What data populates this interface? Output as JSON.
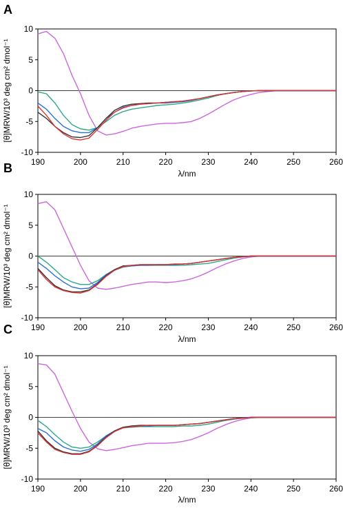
{
  "chart_data": [
    {
      "type": "line",
      "panel_label": "A",
      "xlabel": "λ/nm",
      "ylabel": "[θ]MRW/10³ deg cm² dmol⁻¹",
      "xlim": [
        190,
        260
      ],
      "ylim": [
        -10,
        10
      ],
      "x_ticks": [
        190,
        200,
        210,
        220,
        230,
        240,
        250,
        260
      ],
      "y_ticks": [
        10,
        5,
        0,
        -5,
        -10
      ],
      "x": [
        190,
        192,
        194,
        196,
        198,
        200,
        202,
        204,
        206,
        208,
        210,
        212,
        214,
        216,
        218,
        220,
        222,
        224,
        226,
        228,
        230,
        232,
        234,
        236,
        238,
        240,
        242,
        244,
        246,
        248,
        250,
        252,
        254,
        256,
        258,
        260
      ],
      "series": [
        {
          "color": "#cc66dd",
          "values": [
            9.2,
            9.6,
            8.5,
            6,
            2.5,
            -0.5,
            -4,
            -6.5,
            -7.2,
            -7,
            -6.6,
            -6.1,
            -5.8,
            -5.6,
            -5.4,
            -5.3,
            -5.3,
            -5.2,
            -5,
            -4.5,
            -3.8,
            -3,
            -2.2,
            -1.5,
            -1,
            -0.6,
            -0.3,
            -0.15,
            0,
            0,
            0,
            0,
            0,
            0,
            0,
            0
          ]
        },
        {
          "color": "#2ca88a",
          "values": [
            -0.2,
            -0.5,
            -2,
            -4,
            -5.5,
            -6.2,
            -6.4,
            -6,
            -5,
            -4,
            -3.4,
            -3,
            -2.8,
            -2.6,
            -2.4,
            -2.3,
            -2.2,
            -2,
            -1.8,
            -1.5,
            -1.2,
            -0.8,
            -0.5,
            -0.3,
            -0.15,
            -0.05,
            0,
            0,
            0,
            0,
            0,
            0,
            0,
            0,
            0,
            0
          ]
        },
        {
          "color": "#2a6fd6",
          "values": [
            -2,
            -3,
            -4.5,
            -5.8,
            -6.5,
            -6.8,
            -6.8,
            -6,
            -4.5,
            -3.5,
            -2.7,
            -2.4,
            -2.2,
            -2.1,
            -2,
            -2,
            -1.9,
            -1.8,
            -1.6,
            -1.3,
            -1,
            -0.7,
            -0.5,
            -0.3,
            -0.15,
            -0.05,
            0,
            0,
            0,
            0,
            0,
            0,
            0,
            0,
            0,
            0
          ]
        },
        {
          "color": "#333333",
          "values": [
            -3.5,
            -4.5,
            -5.8,
            -6.8,
            -7.5,
            -7.6,
            -7.3,
            -6,
            -4.5,
            -3.2,
            -2.5,
            -2.2,
            -2.1,
            -2,
            -2,
            -1.9,
            -1.8,
            -1.7,
            -1.5,
            -1.3,
            -1,
            -0.7,
            -0.5,
            -0.3,
            -0.15,
            -0.05,
            0,
            0,
            0,
            0,
            0,
            0,
            0,
            0,
            0,
            0
          ]
        },
        {
          "color": "#dd3333",
          "values": [
            -2.5,
            -4,
            -5.8,
            -7,
            -7.8,
            -8,
            -7.7,
            -6.3,
            -4.8,
            -3.5,
            -2.8,
            -2.4,
            -2.2,
            -2.1,
            -2,
            -1.9,
            -1.8,
            -1.7,
            -1.5,
            -1.3,
            -1,
            -0.7,
            -0.5,
            -0.3,
            -0.15,
            -0.05,
            0,
            0,
            0,
            0,
            0,
            0,
            0,
            0,
            0,
            0
          ]
        }
      ]
    },
    {
      "type": "line",
      "panel_label": "B",
      "xlabel": "λ/nm",
      "ylabel": "[θ]MRW/10³ deg cm² dmol⁻¹",
      "xlim": [
        190,
        260
      ],
      "ylim": [
        -10,
        10
      ],
      "x_ticks": [
        190,
        200,
        210,
        220,
        230,
        240,
        250,
        260
      ],
      "y_ticks": [
        10,
        5,
        0,
        -5,
        -10
      ],
      "x": [
        190,
        192,
        194,
        196,
        198,
        200,
        202,
        204,
        206,
        208,
        210,
        212,
        214,
        216,
        218,
        220,
        222,
        224,
        226,
        228,
        230,
        232,
        234,
        236,
        238,
        240,
        242,
        244,
        246,
        248,
        250,
        252,
        254,
        256,
        258,
        260
      ],
      "series": [
        {
          "color": "#cc66dd",
          "values": [
            8.5,
            8.8,
            7.5,
            4.5,
            1.5,
            -1.5,
            -4,
            -5.2,
            -5.4,
            -5.2,
            -4.9,
            -4.6,
            -4.4,
            -4.2,
            -4.2,
            -4.3,
            -4.2,
            -4,
            -3.7,
            -3.2,
            -2.6,
            -1.9,
            -1.3,
            -0.8,
            -0.4,
            -0.15,
            0,
            0,
            0,
            0,
            0,
            0,
            0,
            0,
            0,
            0
          ]
        },
        {
          "color": "#2ca88a",
          "values": [
            0,
            -1,
            -2.2,
            -3.5,
            -4.2,
            -4.6,
            -4.6,
            -4,
            -3,
            -2.3,
            -1.8,
            -1.6,
            -1.5,
            -1.5,
            -1.5,
            -1.5,
            -1.5,
            -1.5,
            -1.4,
            -1.3,
            -1.2,
            -0.9,
            -0.6,
            -0.35,
            -0.15,
            -0.05,
            0,
            0,
            0,
            0,
            0,
            0,
            0,
            0,
            0,
            0
          ]
        },
        {
          "color": "#2a6fd6",
          "values": [
            -1,
            -2,
            -3.2,
            -4.2,
            -5,
            -5.3,
            -5.2,
            -4.3,
            -3,
            -2.2,
            -1.7,
            -1.6,
            -1.5,
            -1.5,
            -1.4,
            -1.4,
            -1.4,
            -1.3,
            -1.2,
            -1,
            -0.8,
            -0.6,
            -0.4,
            -0.2,
            -0.1,
            0,
            0,
            0,
            0,
            0,
            0,
            0,
            0,
            0,
            0,
            0
          ]
        },
        {
          "color": "#333333",
          "values": [
            -2,
            -3.5,
            -4.8,
            -5.5,
            -5.8,
            -5.8,
            -5.5,
            -4.5,
            -3.2,
            -2.2,
            -1.6,
            -1.5,
            -1.4,
            -1.4,
            -1.4,
            -1.4,
            -1.3,
            -1.3,
            -1.2,
            -1,
            -0.8,
            -0.6,
            -0.4,
            -0.2,
            -0.1,
            0,
            0,
            0,
            0,
            0,
            0,
            0,
            0,
            0,
            0,
            0
          ]
        },
        {
          "color": "#dd3333",
          "values": [
            -2.2,
            -3.8,
            -5,
            -5.6,
            -5.9,
            -6,
            -5.6,
            -4.6,
            -3.3,
            -2.3,
            -1.7,
            -1.5,
            -1.4,
            -1.4,
            -1.4,
            -1.4,
            -1.3,
            -1.3,
            -1.2,
            -1,
            -0.8,
            -0.6,
            -0.4,
            -0.2,
            -0.1,
            0,
            0,
            0,
            0,
            0,
            0,
            0,
            0,
            0,
            0,
            0
          ]
        }
      ]
    },
    {
      "type": "line",
      "panel_label": "C",
      "xlabel": "λ/nm",
      "ylabel": "[θ]MRW/10³ deg cm² dmol⁻¹",
      "xlim": [
        190,
        260
      ],
      "ylim": [
        -10,
        10
      ],
      "x_ticks": [
        190,
        200,
        210,
        220,
        230,
        240,
        250,
        260
      ],
      "y_ticks": [
        10,
        5,
        0,
        -5,
        -10
      ],
      "x": [
        190,
        192,
        194,
        196,
        198,
        200,
        202,
        204,
        206,
        208,
        210,
        212,
        214,
        216,
        218,
        220,
        222,
        224,
        226,
        228,
        230,
        232,
        234,
        236,
        238,
        240,
        242,
        244,
        246,
        248,
        250,
        252,
        254,
        256,
        258,
        260
      ],
      "series": [
        {
          "color": "#cc66dd",
          "values": [
            8.7,
            8.5,
            7,
            4,
            1,
            -1.8,
            -4,
            -5.1,
            -5.4,
            -5.2,
            -4.9,
            -4.6,
            -4.4,
            -4.2,
            -4.2,
            -4.2,
            -4.1,
            -3.9,
            -3.6,
            -3.1,
            -2.5,
            -1.8,
            -1.2,
            -0.7,
            -0.35,
            -0.1,
            0,
            0,
            0,
            0,
            0,
            0,
            0,
            0,
            0,
            0
          ]
        },
        {
          "color": "#2ca88a",
          "values": [
            -0.5,
            -1.5,
            -2.8,
            -4,
            -4.8,
            -5,
            -4.8,
            -4,
            -3,
            -2.2,
            -1.7,
            -1.6,
            -1.5,
            -1.5,
            -1.5,
            -1.5,
            -1.5,
            -1.4,
            -1.4,
            -1.3,
            -1.1,
            -0.8,
            -0.5,
            -0.3,
            -0.15,
            -0.05,
            0,
            0,
            0,
            0,
            0,
            0,
            0,
            0,
            0,
            0
          ]
        },
        {
          "color": "#2a6fd6",
          "values": [
            -1.8,
            -2.5,
            -3.8,
            -4.8,
            -5.3,
            -5.5,
            -5.2,
            -4.3,
            -3,
            -2.2,
            -1.7,
            -1.5,
            -1.4,
            -1.4,
            -1.3,
            -1.3,
            -1.3,
            -1.2,
            -1.1,
            -1,
            -0.8,
            -0.6,
            -0.4,
            -0.2,
            -0.1,
            0,
            0,
            0,
            0,
            0,
            0,
            0,
            0,
            0,
            0,
            0
          ]
        },
        {
          "color": "#333333",
          "values": [
            -2.2,
            -3.8,
            -5,
            -5.6,
            -5.9,
            -5.9,
            -5.5,
            -4.5,
            -3.2,
            -2.2,
            -1.6,
            -1.4,
            -1.3,
            -1.3,
            -1.3,
            -1.3,
            -1.3,
            -1.2,
            -1.1,
            -1,
            -0.8,
            -0.6,
            -0.4,
            -0.2,
            -0.1,
            0,
            0,
            0,
            0,
            0,
            0,
            0,
            0,
            0,
            0,
            0
          ]
        },
        {
          "color": "#dd3333",
          "values": [
            -2.5,
            -4,
            -5.2,
            -5.7,
            -6,
            -6,
            -5.6,
            -4.6,
            -3.3,
            -2.3,
            -1.7,
            -1.5,
            -1.4,
            -1.3,
            -1.3,
            -1.3,
            -1.3,
            -1.2,
            -1.1,
            -1,
            -0.8,
            -0.6,
            -0.4,
            -0.2,
            -0.1,
            0,
            0,
            0,
            0,
            0,
            0,
            0,
            0,
            0,
            0,
            0
          ]
        }
      ]
    }
  ]
}
